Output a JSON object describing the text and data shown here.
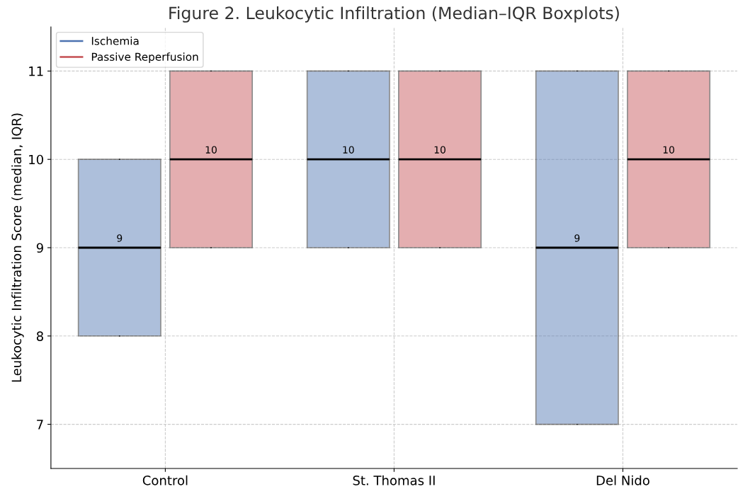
{
  "chart_data": {
    "type": "box",
    "title": "Figure 2. Leukocytic Infiltration (Median–IQR Boxplots)",
    "ylabel": "Leukocytic Infiltration Score (median, IQR)",
    "categories": [
      "Control",
      "St. Thomas II",
      "Del Nido"
    ],
    "series": [
      {
        "name": "Ischemia",
        "color": "#4c72b0",
        "value_labels": [
          "9",
          "10",
          "9"
        ],
        "boxes": [
          {
            "low": 8,
            "q1": 8,
            "median": 9,
            "q3": 10,
            "high": 10
          },
          {
            "low": 9,
            "q1": 9,
            "median": 10,
            "q3": 11,
            "high": 11
          },
          {
            "low": 7,
            "q1": 7,
            "median": 9,
            "q3": 11,
            "high": 11
          }
        ]
      },
      {
        "name": "Passive Reperfusion",
        "color": "#c44e52",
        "value_labels": [
          "10",
          "10",
          "10"
        ],
        "boxes": [
          {
            "low": 9,
            "q1": 9,
            "median": 10,
            "q3": 11,
            "high": 11
          },
          {
            "low": 9,
            "q1": 9,
            "median": 10,
            "q3": 11,
            "high": 11
          },
          {
            "low": 9,
            "q1": 9,
            "median": 10,
            "q3": 11,
            "high": 11
          }
        ]
      }
    ],
    "ylim": [
      6.5,
      11.5
    ],
    "yticks": [
      7,
      8,
      9,
      10,
      11
    ],
    "grid": true,
    "legend": "top left"
  }
}
